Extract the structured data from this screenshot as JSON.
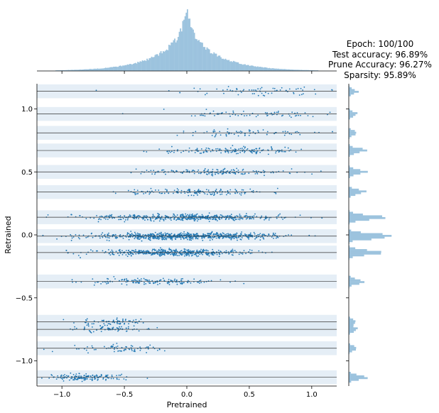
{
  "info": {
    "epoch": "Epoch: 100/100",
    "test_accuracy": "Test accuracy: 96.89%",
    "prune_accuracy": "Prune Accuracy: 96.27%",
    "sparsity": "Sparsity: 95.89%"
  },
  "colors": {
    "points": "#1f77b4",
    "histogram": "#9cc3de",
    "bands": "#dce8f3",
    "center_lines": "#333333"
  },
  "chart_data": {
    "type": "scatter",
    "xlabel": "Pretrained",
    "ylabel": "Retrained",
    "xlim": [
      -1.2,
      1.2
    ],
    "ylim": [
      -1.2,
      1.2
    ],
    "xticks": [
      -1.0,
      -0.5,
      0.0,
      0.5,
      1.0
    ],
    "xtick_labels": [
      "−1.0",
      "−0.5",
      "0.0",
      "0.5",
      "1.0"
    ],
    "yticks": [
      -1.0,
      -0.5,
      0.0,
      0.5,
      1.0
    ],
    "ytick_labels": [
      "−1.0",
      "−0.5",
      "0.0",
      "0.5",
      "1.0"
    ],
    "grid": false,
    "marginal_histograms": true,
    "clusters": [
      {
        "center": 1.14,
        "x_range": [
          -0.8,
          1.2
        ],
        "x_mean": 0.6,
        "density": "low"
      },
      {
        "center": 0.96,
        "x_range": [
          -0.7,
          1.2
        ],
        "x_mean": 0.45,
        "density": "low"
      },
      {
        "center": 0.81,
        "x_range": [
          -0.5,
          1.2
        ],
        "x_mean": 0.45,
        "density": "low"
      },
      {
        "center": 0.67,
        "x_range": [
          -0.5,
          1.2
        ],
        "x_mean": 0.35,
        "density": "medium"
      },
      {
        "center": 0.5,
        "x_range": [
          -0.7,
          1.2
        ],
        "x_mean": 0.2,
        "density": "medium"
      },
      {
        "center": 0.34,
        "x_range": [
          -0.7,
          1.2
        ],
        "x_mean": 0.1,
        "density": "medium"
      },
      {
        "center": 0.14,
        "x_range": [
          -1.2,
          1.2
        ],
        "x_mean": 0.0,
        "density": "high"
      },
      {
        "center": -0.01,
        "x_range": [
          -1.2,
          1.2
        ],
        "x_mean": 0.0,
        "density": "very high"
      },
      {
        "center": -0.14,
        "x_range": [
          -1.2,
          0.7
        ],
        "x_mean": -0.1,
        "density": "high"
      },
      {
        "center": -0.37,
        "x_range": [
          -1.2,
          0.5
        ],
        "x_mean": -0.3,
        "density": "medium"
      },
      {
        "center": -0.69,
        "x_range": [
          -1.2,
          -0.2
        ],
        "x_mean": -0.6,
        "density": "low"
      },
      {
        "center": -0.75,
        "x_range": [
          -1.2,
          -0.2
        ],
        "x_mean": -0.6,
        "density": "low"
      },
      {
        "center": -0.9,
        "x_range": [
          -1.2,
          0.0
        ],
        "x_mean": -0.5,
        "density": "low"
      },
      {
        "center": -1.13,
        "x_range": [
          -1.2,
          -0.3
        ],
        "x_mean": -0.8,
        "density": "medium"
      }
    ]
  }
}
